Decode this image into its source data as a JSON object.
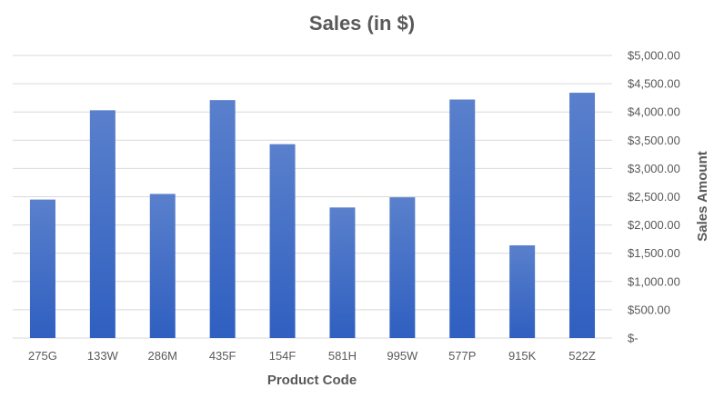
{
  "chart_data": {
    "type": "bar",
    "title": "Sales (in $)",
    "xlabel": "Product Code",
    "ylabel": "Sales Amount",
    "categories": [
      "275G",
      "133W",
      "286M",
      "435F",
      "154F",
      "581H",
      "995W",
      "577P",
      "915K",
      "522Z"
    ],
    "values": [
      2450,
      4030,
      2550,
      4210,
      3430,
      2310,
      2490,
      4220,
      1640,
      4340
    ],
    "ylim": [
      0,
      5000
    ],
    "yticks": [
      0,
      500,
      1000,
      1500,
      2000,
      2500,
      3000,
      3500,
      4000,
      4500,
      5000
    ],
    "ytick_labels": [
      "$-",
      "$500.00",
      "$1,000.00",
      "$1,500.00",
      "$2,000.00",
      "$2,500.00",
      "$3,000.00",
      "$3,500.00",
      "$4,000.00",
      "$4,500.00",
      "$5,000.00"
    ],
    "y_axis_side": "right",
    "grid": true,
    "legend": "none",
    "colors": {
      "bar_top": "#5a80cc",
      "bar_bottom": "#2f5fc0",
      "grid": "#d9d9d9",
      "text": "#595959"
    }
  }
}
